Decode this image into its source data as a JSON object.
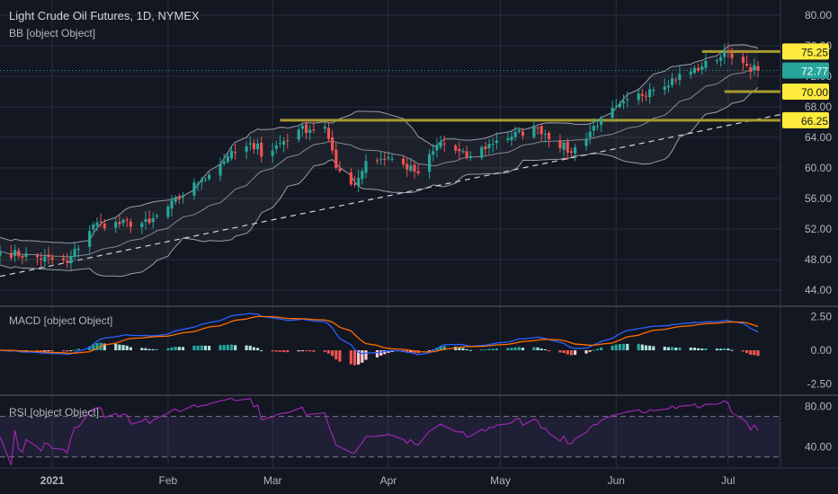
{
  "header": {
    "title": "Light Crude Oil Futures, 1D, NYMEX",
    "bb_label": "BB [object Object]",
    "macd_label": "MACD [object Object]",
    "rsi_label": "RSI [object Object]"
  },
  "colors": {
    "background": "#131722",
    "up": "#26a69a",
    "down": "#ef5350",
    "band": "#b2b5be",
    "level": "#a89a2e",
    "level_tag": "#ffeb3b",
    "last_tag": "#26a69a",
    "macd": "#2962ff",
    "signal": "#ff6d00",
    "rsi": "#9c27b0",
    "text": "#b2b5be"
  },
  "chart_data": [
    {
      "type": "candlestick",
      "title": "Light Crude Oil Futures, 1D, NYMEX",
      "y_ticks": [
        "80.00",
        "76.00",
        "72.00",
        "68.00",
        "64.00",
        "60.00",
        "56.00",
        "52.00",
        "48.00",
        "44.00"
      ],
      "ylim": [
        42,
        82
      ],
      "x_ticks": [
        "2021",
        "Feb",
        "Mar",
        "Apr",
        "May",
        "Jun",
        "Jul"
      ],
      "x_range": [
        "2020-12-18",
        "2021-07-15"
      ],
      "close_anchors": [
        {
          "date": "2020-12-18",
          "close": 49.1
        },
        {
          "date": "2021-01-05",
          "close": 47.6
        },
        {
          "date": "2021-01-12",
          "close": 52.6
        },
        {
          "date": "2021-01-27",
          "close": 52.8
        },
        {
          "date": "2021-02-10",
          "close": 58.5
        },
        {
          "date": "2021-02-17",
          "close": 61.5
        },
        {
          "date": "2021-02-25",
          "close": 63.2
        },
        {
          "date": "2021-02-26",
          "close": 61.5
        },
        {
          "date": "2021-03-08",
          "close": 65.0
        },
        {
          "date": "2021-03-15",
          "close": 65.4
        },
        {
          "date": "2021-03-18",
          "close": 60.0
        },
        {
          "date": "2021-03-23",
          "close": 57.8
        },
        {
          "date": "2021-03-26",
          "close": 60.9
        },
        {
          "date": "2021-04-01",
          "close": 61.4
        },
        {
          "date": "2021-04-09",
          "close": 59.3
        },
        {
          "date": "2021-04-15",
          "close": 63.4
        },
        {
          "date": "2021-04-22",
          "close": 61.4
        },
        {
          "date": "2021-04-30",
          "close": 63.6
        },
        {
          "date": "2021-05-11",
          "close": 65.3
        },
        {
          "date": "2021-05-20",
          "close": 62.0
        },
        {
          "date": "2021-05-28",
          "close": 66.5
        },
        {
          "date": "2021-06-10",
          "close": 70.3
        },
        {
          "date": "2021-06-24",
          "close": 73.3
        },
        {
          "date": "2021-07-01",
          "close": 75.2
        },
        {
          "date": "2021-07-06",
          "close": 73.4
        },
        {
          "date": "2021-07-09",
          "close": 72.77
        }
      ],
      "bollinger": {
        "period": 20,
        "stddev": 2
      },
      "levels": [
        {
          "value": 75.25,
          "label": "75.25",
          "from": "2021-06-24"
        },
        {
          "value": 70.0,
          "label": "70.00",
          "from": "2021-06-30"
        },
        {
          "value": 66.25,
          "label": "66.25",
          "from": "2021-03-03"
        }
      ],
      "trendline": {
        "from": {
          "date": "2020-12-18",
          "value": 45.8
        },
        "to": {
          "date": "2021-07-15",
          "value": 67.0
        }
      },
      "last_price": {
        "value": 72.77,
        "label": "72.77"
      }
    },
    {
      "type": "line",
      "title": "MACD [object Object]",
      "y_ticks": [
        "2.50",
        "0.00",
        "-2.50"
      ],
      "ylim": [
        -3.2,
        3.2
      ],
      "series": [
        {
          "key": "macd",
          "values_from": "computed",
          "fast": 12,
          "slow": 26
        },
        {
          "key": "signal",
          "values_from": "computed",
          "period": 9
        },
        {
          "key": "histogram",
          "values_from": "computed"
        }
      ]
    },
    {
      "type": "line",
      "title": "RSI [object Object]",
      "y_ticks": [
        "80.00",
        "40.00"
      ],
      "ylim": [
        20,
        90
      ],
      "bands": [
        70,
        30
      ],
      "series": [
        {
          "key": "rsi",
          "period": 14
        }
      ]
    }
  ]
}
